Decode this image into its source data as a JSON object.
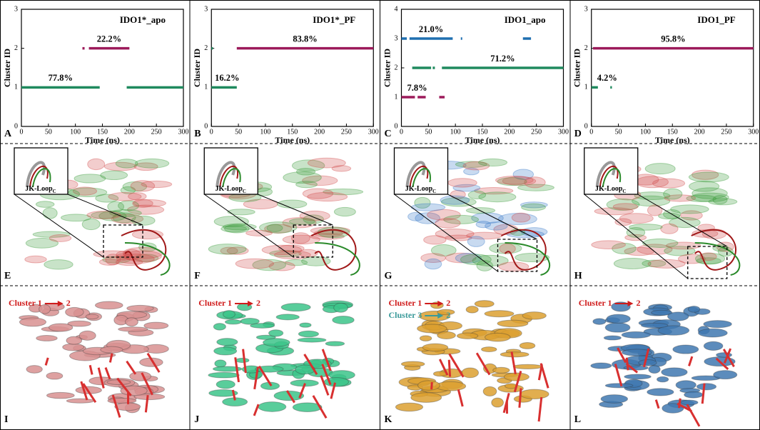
{
  "chart_data": [
    {
      "type": "timeline",
      "title": "IDO1*_apo",
      "xlabel": "Time (ns)",
      "ylabel": "Cluster ID",
      "xlim": [
        0,
        300
      ],
      "xticks": [
        0,
        50,
        100,
        150,
        200,
        250,
        300
      ],
      "ylim": [
        0,
        3
      ],
      "yticks": [
        0,
        1,
        2,
        3
      ],
      "series": [
        {
          "color": "#1f8a5e",
          "segments": [
            [
              1,
              0,
              145
            ],
            [
              1,
              195,
              300
            ]
          ],
          "value": 77.8,
          "value_label": "77.8%"
        },
        {
          "color": "#9c1a5a",
          "segments": [
            [
              2,
              113,
              117
            ],
            [
              2,
              125,
              200
            ]
          ],
          "value": 22.2,
          "value_label": "22.2%"
        }
      ]
    },
    {
      "type": "timeline",
      "title": "IDO1*_PF",
      "xlabel": "Time (ns)",
      "ylabel": "Cluster ID",
      "xlim": [
        0,
        300
      ],
      "xticks": [
        0,
        50,
        100,
        150,
        200,
        250,
        300
      ],
      "ylim": [
        0,
        3
      ],
      "yticks": [
        0,
        1,
        2,
        3
      ],
      "series": [
        {
          "color": "#1f8a5e",
          "segments": [
            [
              1,
              0,
              47
            ],
            [
              2,
              0,
              2
            ]
          ],
          "value": 16.2,
          "value_label": "16.2%"
        },
        {
          "color": "#9c1a5a",
          "segments": [
            [
              2,
              47,
              300
            ]
          ],
          "value": 83.8,
          "value_label": "83.8%"
        }
      ]
    },
    {
      "type": "timeline",
      "title": "IDO1_apo",
      "xlabel": "Time (ns)",
      "ylabel": "Cluster ID",
      "xlim": [
        0,
        300
      ],
      "xticks": [
        0,
        50,
        100,
        150,
        200,
        250,
        300
      ],
      "ylim": [
        0,
        4
      ],
      "yticks": [
        0,
        1,
        2,
        3,
        4
      ],
      "series": [
        {
          "color": "#1f6fb0",
          "segments": [
            [
              3,
              0,
              10
            ],
            [
              3,
              15,
              95
            ],
            [
              3,
              110,
              112
            ],
            [
              3,
              225,
              240
            ]
          ],
          "value": 21.0,
          "value_label": "21.0%"
        },
        {
          "color": "#1f8a5e",
          "segments": [
            [
              2,
              20,
              55
            ],
            [
              2,
              58,
              62
            ],
            [
              2,
              75,
              300
            ]
          ],
          "value": 71.2,
          "value_label": "71.2%"
        },
        {
          "color": "#9c1a5a",
          "segments": [
            [
              1,
              0,
              25
            ],
            [
              1,
              30,
              45
            ],
            [
              1,
              70,
              80
            ]
          ],
          "value": 7.8,
          "value_label": "7.8%"
        }
      ]
    },
    {
      "type": "timeline",
      "title": "IDO1_PF",
      "xlabel": "Time (ns)",
      "ylabel": "Cluster ID",
      "xlim": [
        0,
        300
      ],
      "xticks": [
        0,
        50,
        100,
        150,
        200,
        250,
        300
      ],
      "ylim": [
        0,
        3
      ],
      "yticks": [
        0,
        1,
        2,
        3
      ],
      "series": [
        {
          "color": "#9c1a5a",
          "segments": [
            [
              2,
              3,
              300
            ]
          ],
          "value": 95.8,
          "value_label": "95.8%"
        },
        {
          "color": "#1f8a5e",
          "segments": [
            [
              1,
              0,
              12
            ],
            [
              1,
              35,
              38
            ]
          ],
          "value": 4.2,
          "value_label": "4.2%"
        }
      ]
    }
  ],
  "panel_labels": [
    "A",
    "B",
    "C",
    "D",
    "E",
    "F",
    "G",
    "H",
    "I",
    "J",
    "K",
    "L"
  ],
  "insets": [
    {
      "label": "JK-Loop",
      "subscript": "C"
    },
    {
      "label": "JK-Loop",
      "subscript": "C"
    },
    {
      "label": "JK-Loop",
      "subscript": "C"
    },
    {
      "label": "JK-Loop",
      "subscript": "C"
    }
  ],
  "transitions": [
    [
      {
        "from": "Cluster 1",
        "to": "2"
      }
    ],
    [
      {
        "from": "Cluster 1",
        "to": "2"
      }
    ],
    [
      {
        "from": "Cluster 1",
        "to": "2"
      },
      {
        "from": "Cluster 3",
        "to": "2"
      }
    ],
    [
      {
        "from": "Cluster 1",
        "to": "2"
      }
    ]
  ]
}
